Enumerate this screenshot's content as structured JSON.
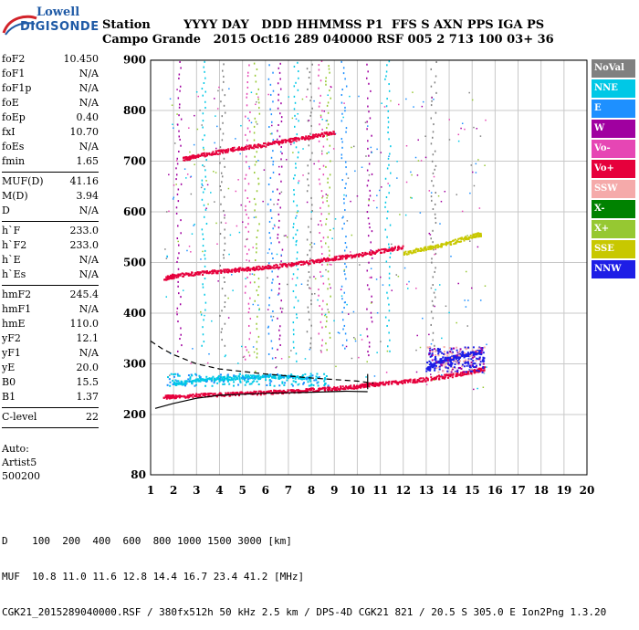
{
  "logo": {
    "line1": "Lowell",
    "line2": "DIGISONDE"
  },
  "header": {
    "row1": "Station        YYYY DAY   DDD HHMMSS P1  FFS S AXN PPS IGA PS",
    "row2": "Campo Grande   2015 Oct16 289 040000 RSF 005 2 713 100 03+ 36"
  },
  "params": [
    {
      "k": "foF2",
      "v": "10.450"
    },
    {
      "k": "foF1",
      "v": "N/A"
    },
    {
      "k": "foF1p",
      "v": "N/A"
    },
    {
      "k": "foE",
      "v": "N/A"
    },
    {
      "k": "foEp",
      "v": "0.40"
    },
    {
      "k": "fxI",
      "v": "10.70"
    },
    {
      "k": "foEs",
      "v": "N/A"
    },
    {
      "k": "fmin",
      "v": "1.65"
    },
    {
      "sep": true
    },
    {
      "k": "MUF(D)",
      "v": "41.16"
    },
    {
      "k": "M(D)",
      "v": "3.94"
    },
    {
      "k": "D",
      "v": "N/A"
    },
    {
      "sep": true
    },
    {
      "k": "h`F",
      "v": "233.0"
    },
    {
      "k": "h`F2",
      "v": "233.0"
    },
    {
      "k": "h`E",
      "v": "N/A"
    },
    {
      "k": "h`Es",
      "v": "N/A"
    },
    {
      "sep": true
    },
    {
      "k": "hmF2",
      "v": "245.4"
    },
    {
      "k": "hmF1",
      "v": "N/A"
    },
    {
      "k": "hmE",
      "v": "110.0"
    },
    {
      "k": "yF2",
      "v": "12.1"
    },
    {
      "k": "yF1",
      "v": "N/A"
    },
    {
      "k": "yE",
      "v": "20.0"
    },
    {
      "k": "B0",
      "v": "15.5"
    },
    {
      "k": "B1",
      "v": "1.37"
    },
    {
      "sep": true
    },
    {
      "k": "C-level",
      "v": "22"
    },
    {
      "sep": true
    }
  ],
  "auto": {
    "l1": "Auto:",
    "l2": "Artist5",
    "l3": "500200"
  },
  "legend": [
    {
      "label": "NoVal",
      "color": "#808080"
    },
    {
      "label": "NNE",
      "color": "#00c8e6"
    },
    {
      "label": "E",
      "color": "#1e90ff"
    },
    {
      "label": "W",
      "color": "#a000a0"
    },
    {
      "label": "Vo-",
      "color": "#e646b4"
    },
    {
      "label": "Vo+",
      "color": "#e6003c"
    },
    {
      "label": "SSW",
      "color": "#f5aaaa"
    },
    {
      "label": "X-",
      "color": "#008200"
    },
    {
      "label": "X+",
      "color": "#96c832"
    },
    {
      "label": "SSE",
      "color": "#c8c800"
    },
    {
      "label": "NNW",
      "color": "#1e1ee6"
    }
  ],
  "footer": {
    "row1": "D    100  200  400  600  800 1000 1500 3000 [km]",
    "row2": "MUF  10.8 11.0 11.6 12.8 14.4 16.7 23.4 41.2 [MHz]",
    "row3": "CGK21_2015289040000.RSF / 380fx512h 50 kHz 2.5 km / DPS-4D CGK21 821 / 20.5 S 305.0 E Ion2Png 1.3.20"
  },
  "chart_data": {
    "type": "scatter",
    "x_ticks": [
      1,
      2,
      3,
      4,
      5,
      6,
      7,
      8,
      9,
      10,
      11,
      12,
      13,
      14,
      15,
      16,
      17,
      18,
      19,
      20
    ],
    "y_ticks": [
      80,
      200,
      300,
      400,
      500,
      600,
      700,
      800,
      900
    ],
    "y_scale": "piecewise (80-200 compressed)",
    "xlim": [
      1,
      20
    ],
    "ylim": [
      80,
      900
    ],
    "grid": true,
    "traces": [
      {
        "name": "Vo+",
        "color": "#e6003c",
        "points": [
          [
            1.6,
            236
          ],
          [
            2,
            237
          ],
          [
            3,
            239
          ],
          [
            4,
            241
          ],
          [
            5,
            243
          ],
          [
            6,
            245
          ],
          [
            7,
            247
          ],
          [
            8,
            250
          ],
          [
            9,
            253
          ],
          [
            10,
            257
          ],
          [
            10.45,
            260
          ],
          [
            11,
            262
          ],
          [
            12,
            266
          ],
          [
            13,
            271
          ],
          [
            14,
            278
          ],
          [
            15,
            286
          ],
          [
            15.5,
            292
          ]
        ]
      },
      {
        "name": "Vo+ 2nd hop",
        "color": "#e6003c",
        "points": [
          [
            1.6,
            470
          ],
          [
            2,
            475
          ],
          [
            3,
            480
          ],
          [
            4,
            484
          ],
          [
            5,
            488
          ],
          [
            6,
            492
          ],
          [
            7,
            497
          ],
          [
            8,
            503
          ],
          [
            9,
            510
          ],
          [
            10,
            516
          ],
          [
            11,
            524
          ],
          [
            12,
            532
          ]
        ]
      },
      {
        "name": "Vo+ 3rd hop",
        "color": "#e6003c",
        "points": [
          [
            2.4,
            705
          ],
          [
            3,
            712
          ],
          [
            4,
            720
          ],
          [
            5,
            728
          ],
          [
            6,
            734
          ],
          [
            7,
            742
          ],
          [
            8,
            750
          ],
          [
            9,
            758
          ]
        ]
      },
      {
        "name": "X+",
        "color": "#c8c800",
        "points": [
          [
            12,
            520
          ],
          [
            13,
            530
          ],
          [
            14,
            540
          ],
          [
            15,
            553
          ],
          [
            15.4,
            558
          ]
        ]
      },
      {
        "name": "NNW",
        "color": "#1e1ee6",
        "points": [
          [
            13,
            290
          ],
          [
            13.5,
            305
          ],
          [
            14,
            312
          ],
          [
            14.5,
            318
          ],
          [
            15,
            322
          ],
          [
            15.4,
            326
          ]
        ]
      },
      {
        "name": "NNE",
        "color": "#00c8e6",
        "points": [
          [
            2,
            262
          ],
          [
            3,
            268
          ],
          [
            4,
            272
          ],
          [
            5,
            275
          ],
          [
            6,
            276
          ],
          [
            7,
            276
          ],
          [
            8,
            274
          ]
        ]
      }
    ],
    "profile_solid": [
      [
        1.2,
        212
      ],
      [
        2,
        222
      ],
      [
        3,
        232
      ],
      [
        4,
        238
      ],
      [
        6,
        242
      ],
      [
        8,
        244
      ],
      [
        9.5,
        246
      ],
      [
        10.45,
        245
      ]
    ],
    "profile_dashed": [
      [
        1,
        345
      ],
      [
        1.5,
        330
      ],
      [
        2,
        318
      ],
      [
        3,
        300
      ],
      [
        4,
        290
      ],
      [
        6,
        280
      ],
      [
        8,
        272
      ],
      [
        10,
        266
      ],
      [
        10.7,
        262
      ]
    ],
    "vertical_streaks_x": [
      2.2,
      3.3,
      4.1,
      5.2,
      5.6,
      6.2,
      6.6,
      7.3,
      7.9,
      8.4,
      8.7,
      9.4,
      10.5,
      11.3,
      13.3
    ]
  }
}
